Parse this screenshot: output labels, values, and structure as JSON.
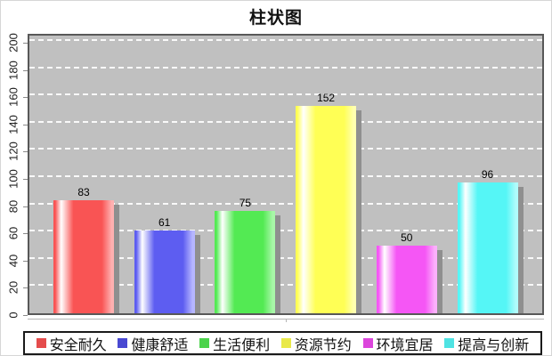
{
  "title": "柱状图",
  "chart_data": {
    "type": "bar",
    "title": "柱状图",
    "categories": [
      "安全耐久",
      "健康舒适",
      "生活便利",
      "资源节约",
      "环境宜居",
      "提高与创新"
    ],
    "values": [
      83,
      61,
      75,
      152,
      50,
      96
    ],
    "xlabel": "",
    "ylabel": "",
    "ylim": [
      0,
      200
    ],
    "yticks": [
      0,
      20,
      40,
      60,
      80,
      100,
      120,
      140,
      160,
      180,
      200
    ],
    "grid": true,
    "gridline_color": "#ffffff",
    "plot_background": "#c0c0c0",
    "legend_position": "bottom",
    "bar_colors": [
      "#f95454",
      "#5d5df1",
      "#53ea53",
      "#ffff55",
      "#f556f5",
      "#55f6f6"
    ],
    "bar_colors_light": [
      "#ffb0b0",
      "#b6b6ff",
      "#a8f7a8",
      "#ffffb0",
      "#fbb0fb",
      "#b0fbfb"
    ],
    "legend_swatch_colors": [
      "#e54c4c",
      "#4949d2",
      "#4cd34c",
      "#e9e94a",
      "#dc46dc",
      "#4fe3e3"
    ],
    "value_label_color": "#000000"
  }
}
